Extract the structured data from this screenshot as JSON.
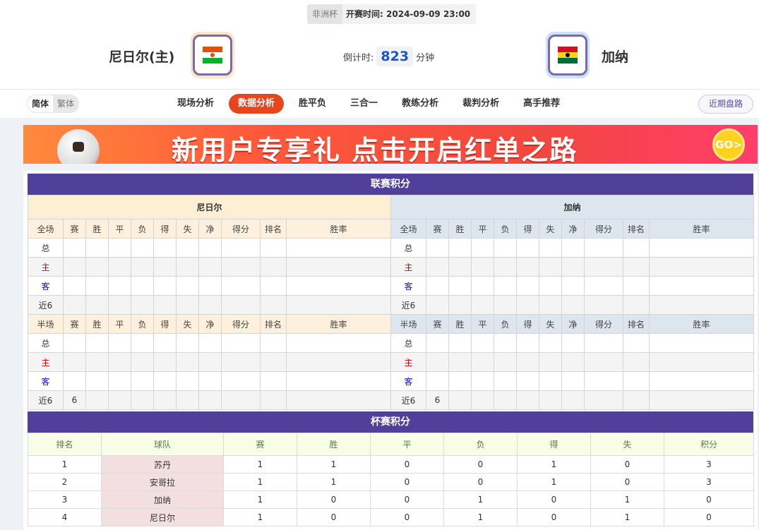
{
  "header": {
    "league": "非洲杯",
    "kickoff_label": "开赛时间:",
    "kickoff": "2024-09-09 23:00",
    "home": {
      "name": "尼日尔(主)",
      "flag": [
        "#e05206",
        "#ffffff",
        "#0db02b"
      ]
    },
    "away": {
      "name": "加纳",
      "flag": [
        "#ce1126",
        "#fcd116",
        "#006b3f"
      ]
    },
    "countdown_label": "倒计时:",
    "countdown_value": "823",
    "countdown_unit": "分钟"
  },
  "nav": {
    "lang": [
      "简体",
      "繁体"
    ],
    "tabs": [
      "现场分析",
      "数据分析",
      "胜平负",
      "三合一",
      "教练分析",
      "裁判分析",
      "高手推荐"
    ],
    "active_tab": "数据分析",
    "recent": "近期盘路"
  },
  "banner": {
    "text": "新用户专享礼  点击开启红单之路",
    "go": "GO>"
  },
  "league_table": {
    "title": "联赛积分",
    "home_team": "尼日尔",
    "away_team": "加纳",
    "full_headers": [
      "全场",
      "赛",
      "胜",
      "平",
      "负",
      "得",
      "失",
      "净",
      "得分",
      "排名",
      "胜率"
    ],
    "half_headers": [
      "半场",
      "赛",
      "胜",
      "平",
      "负",
      "得",
      "失",
      "净",
      "得分",
      "排名",
      "胜率"
    ],
    "row_labels": [
      "总",
      "主",
      "客",
      "近6"
    ],
    "home_full": [
      [
        "",
        "",
        "",
        "",
        "",
        "",
        "",
        "",
        "",
        ""
      ],
      [
        "",
        "",
        "",
        "",
        "",
        "",
        "",
        "",
        "",
        ""
      ],
      [
        "",
        "",
        "",
        "",
        "",
        "",
        "",
        "",
        "",
        ""
      ],
      [
        "",
        "",
        "",
        "",
        "",
        "",
        "",
        "",
        "",
        ""
      ]
    ],
    "home_half": [
      [
        "",
        "",
        "",
        "",
        "",
        "",
        "",
        "",
        "",
        ""
      ],
      [
        "",
        "",
        "",
        "",
        "",
        "",
        "",
        "",
        "",
        ""
      ],
      [
        "",
        "",
        "",
        "",
        "",
        "",
        "",
        "",
        "",
        ""
      ],
      [
        "6",
        "",
        "",
        "",
        "",
        "",
        "",
        "",
        "",
        ""
      ]
    ],
    "away_full": [
      [
        "",
        "",
        "",
        "",
        "",
        "",
        "",
        "",
        "",
        ""
      ],
      [
        "",
        "",
        "",
        "",
        "",
        "",
        "",
        "",
        "",
        ""
      ],
      [
        "",
        "",
        "",
        "",
        "",
        "",
        "",
        "",
        "",
        ""
      ],
      [
        "",
        "",
        "",
        "",
        "",
        "",
        "",
        "",
        "",
        ""
      ]
    ],
    "away_half": [
      [
        "",
        "",
        "",
        "",
        "",
        "",
        "",
        "",
        "",
        ""
      ],
      [
        "",
        "",
        "",
        "",
        "",
        "",
        "",
        "",
        "",
        ""
      ],
      [
        "",
        "",
        "",
        "",
        "",
        "",
        "",
        "",
        "",
        ""
      ],
      [
        "6",
        "",
        "",
        "",
        "",
        "",
        "",
        "",
        "",
        ""
      ]
    ]
  },
  "cup_table": {
    "title": "杯赛积分",
    "headers": [
      "排名",
      "球队",
      "赛",
      "胜",
      "平",
      "负",
      "得",
      "失",
      "积分"
    ],
    "rows": [
      [
        "1",
        "苏丹",
        "1",
        "1",
        "0",
        "0",
        "1",
        "0",
        "3"
      ],
      [
        "2",
        "安哥拉",
        "1",
        "1",
        "0",
        "0",
        "1",
        "0",
        "3"
      ],
      [
        "3",
        "加纳",
        "1",
        "0",
        "0",
        "1",
        "0",
        "1",
        "0"
      ],
      [
        "4",
        "尼日尔",
        "1",
        "0",
        "0",
        "1",
        "0",
        "1",
        "0"
      ]
    ]
  }
}
